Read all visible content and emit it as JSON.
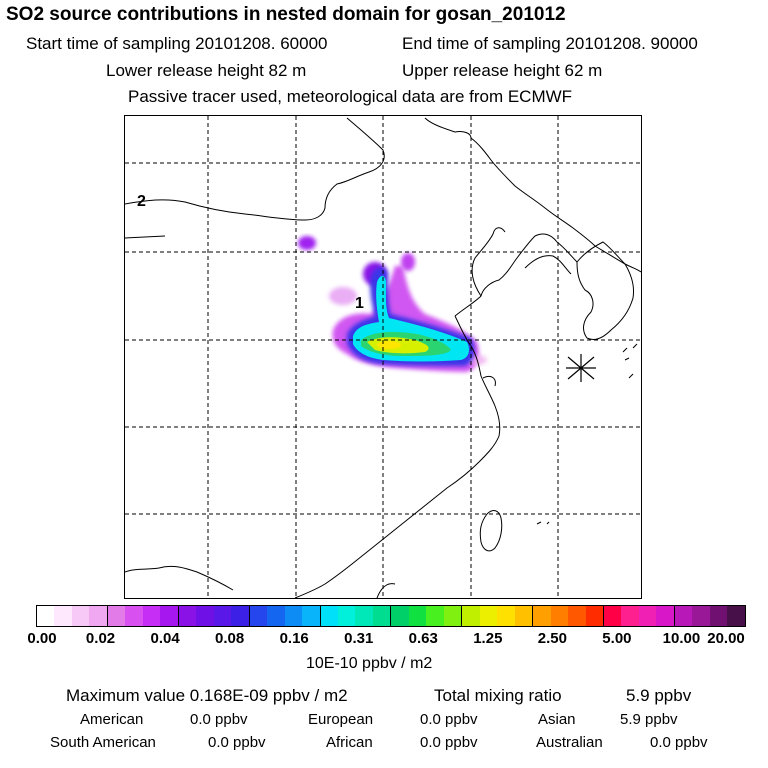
{
  "header": {
    "title": "SO2 source contributions in nested domain for gosan_201012",
    "start_time": "Start time of sampling 20101208. 60000",
    "end_time": "End time of sampling 20101208. 90000",
    "lower_height": "Lower release height   82 m",
    "upper_height": "Upper release height   62 m",
    "note": "Passive tracer used, meteorological data are from ECMWF"
  },
  "map": {
    "labels": [
      "1",
      "2"
    ],
    "receptor_marker": "asterisk-icon"
  },
  "colorbar": {
    "colors": [
      "#ffffff",
      "#fde8fd",
      "#f7c9f7",
      "#f0a8f0",
      "#e27be8",
      "#d850f0",
      "#c62ef5",
      "#a617ef",
      "#8a12e6",
      "#6f10e6",
      "#5a18e8",
      "#3d20e6",
      "#2446ec",
      "#1466f0",
      "#0e8cf5",
      "#0ab4fa",
      "#00e0f8",
      "#00f0dc",
      "#00e8b8",
      "#00dc90",
      "#00d068",
      "#10e040",
      "#48f020",
      "#80f010",
      "#c0f000",
      "#ecf000",
      "#ffe000",
      "#ffc000",
      "#ffa000",
      "#ff7e00",
      "#ff5800",
      "#ff2c00",
      "#ff0046",
      "#ff2090",
      "#f020b4",
      "#d818c8",
      "#b818b8",
      "#981898",
      "#701070",
      "#481048"
    ],
    "tick_labels": [
      "0.00",
      "0.02",
      "0.04",
      "0.08",
      "0.16",
      "0.31",
      "0.63",
      "1.25",
      "2.50",
      "5.00",
      "10.00",
      "20.00"
    ],
    "units": "10E-10 ppbv / m2"
  },
  "summary": {
    "max_value": "Maximum value  0.168E-09 ppbv / m2",
    "total_label": "Total mixing ratio",
    "total_value": "5.9 ppbv",
    "regions": [
      {
        "name": "American",
        "value": "0.0 ppbv"
      },
      {
        "name": "European",
        "value": "0.0 ppbv"
      },
      {
        "name": "Asian",
        "value": "5.9 ppbv"
      },
      {
        "name": "South American",
        "value": "0.0 ppbv"
      },
      {
        "name": "African",
        "value": "0.0 ppbv"
      },
      {
        "name": "Australian",
        "value": "0.0 ppbv"
      }
    ]
  }
}
